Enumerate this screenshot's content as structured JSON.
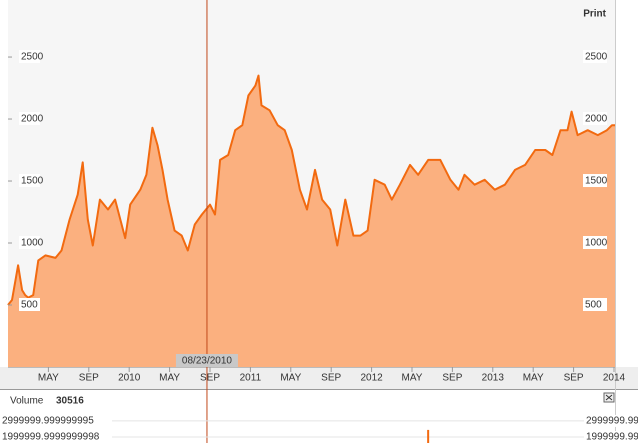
{
  "toolbar": {
    "print": "Print"
  },
  "chart_data": [
    {
      "type": "area",
      "color": "#f26a10",
      "fill": "#fbb07f",
      "x": [
        0,
        0.4,
        1,
        1.4,
        1.7,
        2,
        2.5,
        3,
        3.7,
        4.7,
        5.3,
        6.1,
        6.9,
        7.4,
        7.9,
        8.4,
        9.1,
        9.9,
        10.6,
        11.6,
        12.1,
        13.1,
        13.7,
        14.3,
        14.8,
        15.3,
        15.8,
        16.5,
        17.2,
        17.8,
        18.5,
        19.2,
        20,
        20.5,
        21,
        21.8,
        22.5,
        23.2,
        23.8,
        24.5,
        24.8,
        25.1,
        25.9,
        26.7,
        27.4,
        28.1,
        28.9,
        29.6,
        30.4,
        31.1,
        31.9,
        32.6,
        33.4,
        34.2,
        34.9,
        35.6,
        36.3,
        37.3,
        38,
        38.8,
        39.8,
        40.6,
        41.6,
        42.8,
        43.8,
        44.6,
        45.2,
        46.2,
        47.2,
        48.2,
        49.2,
        50.2,
        51.2,
        52.2,
        53.2,
        53.9,
        54.7,
        55.4,
        55.8,
        56.4,
        57.4,
        58.4,
        59.3,
        59.8,
        60.1
      ],
      "values": [
        500,
        540,
        820,
        620,
        580,
        560,
        580,
        860,
        900,
        880,
        940,
        1190,
        1390,
        1650,
        1190,
        980,
        1350,
        1270,
        1350,
        1040,
        1310,
        1430,
        1550,
        1930,
        1790,
        1590,
        1350,
        1100,
        1060,
        940,
        1150,
        1230,
        1310,
        1230,
        1670,
        1710,
        1910,
        1950,
        2190,
        2270,
        2350,
        2110,
        2070,
        1950,
        1910,
        1750,
        1430,
        1270,
        1590,
        1350,
        1270,
        980,
        1350,
        1060,
        1060,
        1100,
        1510,
        1470,
        1350,
        1470,
        1630,
        1550,
        1670,
        1670,
        1510,
        1430,
        1550,
        1470,
        1510,
        1430,
        1470,
        1590,
        1630,
        1750,
        1750,
        1710,
        1910,
        1910,
        2060,
        1870,
        1910,
        1870,
        1910,
        1950,
        1950
      ],
      "xlim": [
        0,
        60.1
      ],
      "xticks": [
        {
          "value": 4,
          "label": "MAY"
        },
        {
          "value": 8,
          "label": "SEP"
        },
        {
          "value": 12,
          "label": "2010"
        },
        {
          "value": 16,
          "label": "MAY"
        },
        {
          "value": 20,
          "label": "SEP"
        },
        {
          "value": 24,
          "label": "2011"
        },
        {
          "value": 28,
          "label": "MAY"
        },
        {
          "value": 32,
          "label": "SEP"
        },
        {
          "value": 36,
          "label": "2012"
        },
        {
          "value": 40,
          "label": "MAY"
        },
        {
          "value": 44,
          "label": "SEP"
        },
        {
          "value": 48,
          "label": "2013"
        },
        {
          "value": 52,
          "label": "MAY"
        },
        {
          "value": 56,
          "label": "SEP"
        },
        {
          "value": 60,
          "label": "2014"
        }
      ],
      "ylim": [
        0,
        2960
      ],
      "yticks": [
        500,
        1000,
        1500,
        2000,
        2500
      ],
      "crosshair": {
        "value": 19.7,
        "label": "08/23/2010"
      }
    },
    {
      "type": "bar",
      "title": "Volume",
      "last_value": 30516,
      "color": "#f26a10",
      "x": [
        41.6
      ],
      "values": [
        2440000
      ],
      "ylim": [
        1625000,
        4800000
      ],
      "yticks": [
        {
          "value": 3000000,
          "label": "2999999.999999995"
        },
        {
          "value": 2000000,
          "label": "1999999.9999999998"
        }
      ]
    }
  ]
}
